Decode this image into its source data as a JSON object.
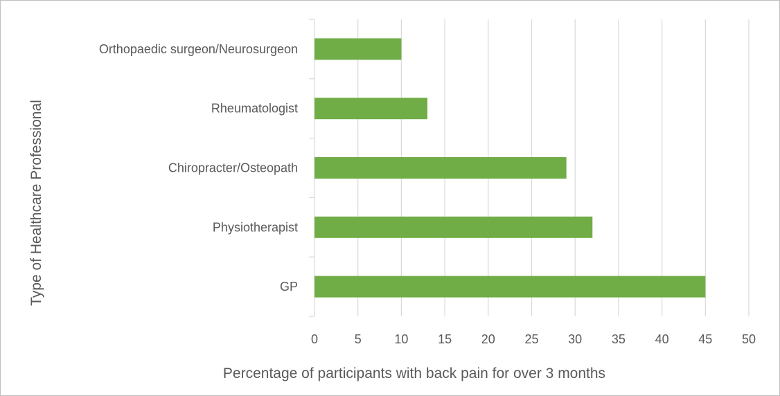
{
  "chart_data": {
    "type": "bar",
    "orientation": "horizontal",
    "categories": [
      "Orthopaedic surgeon/Neurosurgeon",
      "Rheumatologist",
      "Chiropracter/Osteopath",
      "Physiotherapist",
      "GP"
    ],
    "values": [
      10,
      13,
      29,
      32,
      45
    ],
    "xlabel": "Percentage of participants with back pain for over 3 months",
    "ylabel": "Type of Healthcare Professional",
    "xlim": [
      0,
      50
    ],
    "xticks": [
      "0",
      "5",
      "10",
      "15",
      "20",
      "25",
      "30",
      "35",
      "40",
      "45",
      "50"
    ],
    "grid": "vertical",
    "legend": "none",
    "bar_color": "#70AD47",
    "grid_color": "#D9D9D9",
    "text_color": "#595959"
  }
}
